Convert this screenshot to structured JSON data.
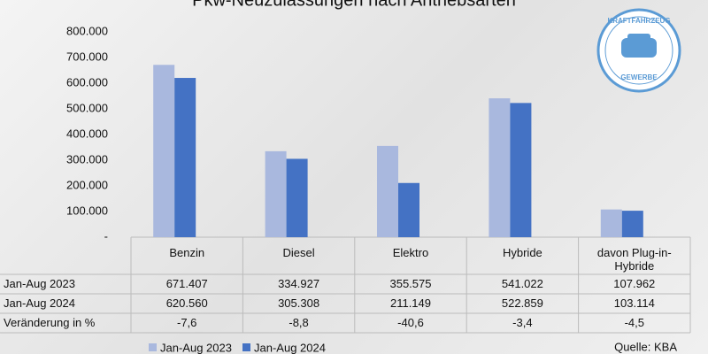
{
  "chart_data": {
    "type": "bar",
    "title": "Pkw-Neuzulassungen nach Antriebsarten",
    "categories": [
      "Benzin",
      "Diesel",
      "Elektro",
      "Hybride",
      "davon Plug-in-Hybride"
    ],
    "series": [
      {
        "name": "Jan-Aug 2023",
        "color": "#a9b8de",
        "values": [
          671407,
          334927,
          355575,
          541022,
          107962
        ],
        "value_labels": [
          "671.407",
          "334.927",
          "355.575",
          "541.022",
          "107.962"
        ]
      },
      {
        "name": "Jan-Aug 2024",
        "color": "#4472c4",
        "values": [
          620560,
          305308,
          211149,
          522859,
          103114
        ],
        "value_labels": [
          "620.560",
          "305.308",
          "211.149",
          "522.859",
          "103.114"
        ]
      }
    ],
    "change": {
      "name": "Veränderung in %",
      "values": [
        -7.6,
        -8.8,
        -40.6,
        -3.4,
        -4.5
      ],
      "value_labels": [
        "-7,6",
        "-8,8",
        "-40,6",
        "-3,4",
        "-4,5"
      ]
    },
    "ylim": [
      0,
      800000
    ],
    "yticks": [
      {
        "value": 0,
        "label": "-"
      },
      {
        "value": 100000,
        "label": "100.000"
      },
      {
        "value": 200000,
        "label": "200.000"
      },
      {
        "value": 300000,
        "label": "300.000"
      },
      {
        "value": 400000,
        "label": "400.000"
      },
      {
        "value": 500000,
        "label": "500.000"
      },
      {
        "value": 600000,
        "label": "600.000"
      },
      {
        "value": 700000,
        "label": "700.000"
      },
      {
        "value": 800000,
        "label": "800.000"
      }
    ],
    "grid": false,
    "source": "Quelle: KBA",
    "logo": {
      "top": "KRAFTFAHRZEUG",
      "bottom": "GEWERBE"
    }
  }
}
